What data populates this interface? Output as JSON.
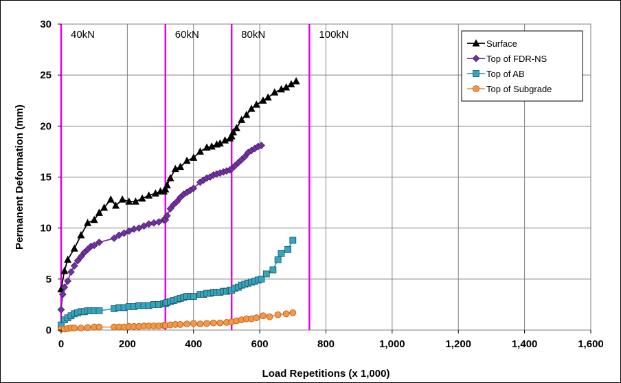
{
  "chart_data": {
    "type": "line",
    "title": "",
    "xlabel": "Load Repetitions (x 1,000)",
    "ylabel": "Permanent Deformation (mm)",
    "xlim": [
      0,
      1600
    ],
    "ylim": [
      0,
      30
    ],
    "x_ticks": [
      0,
      200,
      400,
      600,
      800,
      1000,
      1200,
      1400,
      1600
    ],
    "x_tick_labels": [
      "0",
      "200",
      "400",
      "600",
      "800",
      "1,000",
      "1,200",
      "1,400",
      "1,600"
    ],
    "y_ticks": [
      0,
      5,
      10,
      15,
      20,
      25,
      30
    ],
    "y_tick_labels": [
      "0",
      "5",
      "10",
      "15",
      "20",
      "25",
      "30"
    ],
    "grid": true,
    "legend_position": "top-right",
    "load_stages": [
      {
        "x": 0,
        "label": "40kN"
      },
      {
        "x": 315,
        "label": "60kN"
      },
      {
        "x": 515,
        "label": "80kN"
      },
      {
        "x": 750,
        "label": "100kN"
      }
    ],
    "load_line_color": "#e600e6",
    "series": [
      {
        "name": "Surface",
        "color": "#000000",
        "marker": "triangle",
        "x": [
          0,
          10,
          20,
          40,
          60,
          80,
          100,
          115,
          130,
          150,
          165,
          185,
          205,
          225,
          245,
          265,
          285,
          300,
          310,
          315,
          320,
          330,
          345,
          360,
          380,
          400,
          420,
          440,
          455,
          470,
          480,
          495,
          510,
          515,
          520,
          530,
          545,
          560,
          575,
          590,
          610,
          625,
          645,
          665,
          680,
          695,
          710
        ],
        "y": [
          4.0,
          5.8,
          6.9,
          8.0,
          9.3,
          10.5,
          10.8,
          11.5,
          12.0,
          12.8,
          12.2,
          12.8,
          12.6,
          12.6,
          12.9,
          13.2,
          13.4,
          13.6,
          13.6,
          13.8,
          14.2,
          14.9,
          15.8,
          16.0,
          16.6,
          16.9,
          17.5,
          17.9,
          18.0,
          18.2,
          18.3,
          18.6,
          18.8,
          19.0,
          19.4,
          19.8,
          20.6,
          21.1,
          21.7,
          22.1,
          22.5,
          22.8,
          23.3,
          23.6,
          23.8,
          24.1,
          24.4
        ]
      },
      {
        "name": "Top of FDR-NS",
        "color": "#7030a0",
        "marker": "diamond",
        "x": [
          0,
          5,
          10,
          20,
          30,
          40,
          50,
          60,
          70,
          80,
          90,
          100,
          115,
          160,
          175,
          190,
          205,
          220,
          235,
          250,
          265,
          280,
          295,
          310,
          315,
          320,
          330,
          340,
          350,
          360,
          370,
          380,
          390,
          400,
          420,
          430,
          440,
          450,
          460,
          470,
          480,
          490,
          500,
          510,
          515,
          525,
          535,
          545,
          555,
          565,
          575,
          585,
          595,
          605
        ],
        "y": [
          2.0,
          3.5,
          4.2,
          4.8,
          5.7,
          6.3,
          6.8,
          7.2,
          7.6,
          7.9,
          8.2,
          8.3,
          8.6,
          9.0,
          9.3,
          9.5,
          9.7,
          9.9,
          10.0,
          10.2,
          10.4,
          10.5,
          10.6,
          10.8,
          10.8,
          11.2,
          11.9,
          12.3,
          12.6,
          13.0,
          13.3,
          13.5,
          13.7,
          13.9,
          14.5,
          14.7,
          14.9,
          15.0,
          15.2,
          15.3,
          15.4,
          15.5,
          15.6,
          15.7,
          15.8,
          16.1,
          16.4,
          16.7,
          17.0,
          17.4,
          17.6,
          17.8,
          18.0,
          18.1
        ]
      },
      {
        "name": "Top of AB",
        "color": "#33a6bf",
        "marker": "square",
        "x": [
          0,
          10,
          20,
          30,
          40,
          50,
          60,
          70,
          80,
          90,
          100,
          115,
          160,
          175,
          190,
          205,
          220,
          235,
          250,
          265,
          280,
          295,
          310,
          315,
          320,
          330,
          340,
          350,
          360,
          370,
          380,
          390,
          400,
          420,
          430,
          440,
          450,
          460,
          470,
          480,
          490,
          500,
          510,
          515,
          525,
          535,
          545,
          555,
          565,
          575,
          585,
          595,
          605,
          620,
          640,
          655,
          665,
          685,
          700
        ],
        "y": [
          0.5,
          1.0,
          1.2,
          1.4,
          1.6,
          1.7,
          1.8,
          1.8,
          1.9,
          1.9,
          1.9,
          1.9,
          2.1,
          2.2,
          2.2,
          2.3,
          2.3,
          2.4,
          2.4,
          2.4,
          2.5,
          2.5,
          2.6,
          2.6,
          2.7,
          2.8,
          2.9,
          3.0,
          3.1,
          3.2,
          3.3,
          3.3,
          3.3,
          3.5,
          3.5,
          3.6,
          3.6,
          3.7,
          3.7,
          3.7,
          3.8,
          3.8,
          3.9,
          3.9,
          4.1,
          4.2,
          4.4,
          4.5,
          4.6,
          4.7,
          4.8,
          4.9,
          5.0,
          5.5,
          5.9,
          6.9,
          7.5,
          7.9,
          8.8
        ]
      },
      {
        "name": "Top of Subgrade",
        "color": "#f79646",
        "marker": "circle",
        "x": [
          0,
          10,
          20,
          30,
          40,
          60,
          80,
          100,
          115,
          160,
          175,
          190,
          205,
          220,
          235,
          250,
          265,
          280,
          295,
          310,
          315,
          330,
          345,
          360,
          380,
          400,
          420,
          440,
          460,
          480,
          500,
          515,
          530,
          545,
          560,
          575,
          590,
          610,
          630,
          655,
          680,
          700
        ],
        "y": [
          0.1,
          0.1,
          0.15,
          0.2,
          0.2,
          0.2,
          0.25,
          0.3,
          0.3,
          0.3,
          0.3,
          0.3,
          0.35,
          0.35,
          0.35,
          0.4,
          0.4,
          0.4,
          0.4,
          0.45,
          0.45,
          0.5,
          0.55,
          0.55,
          0.6,
          0.65,
          0.6,
          0.65,
          0.7,
          0.7,
          0.75,
          0.8,
          0.9,
          1.0,
          1.1,
          1.1,
          1.2,
          1.4,
          1.3,
          1.5,
          1.6,
          1.7
        ]
      }
    ]
  }
}
